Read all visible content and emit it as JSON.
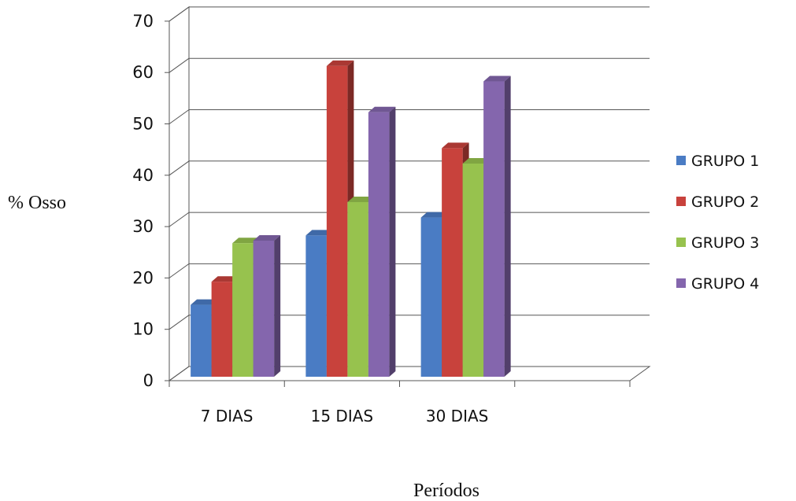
{
  "chart_data": {
    "type": "bar",
    "title": "",
    "ylabel": "% Osso",
    "xlabel": "Períodos",
    "categories": [
      "7 DIAS",
      "15 DIAS",
      "30 DIAS",
      ""
    ],
    "series": [
      {
        "name": "GRUPO 1",
        "color": "#4a7cc4",
        "values": [
          14,
          27.5,
          31,
          null
        ]
      },
      {
        "name": "GRUPO 2",
        "color": "#c8423c",
        "values": [
          18.5,
          60.5,
          44.5,
          null
        ]
      },
      {
        "name": "GRUPO 3",
        "color": "#97c24e",
        "values": [
          26,
          34,
          41.5,
          null
        ]
      },
      {
        "name": "GRUPO 4",
        "color": "#8466ad",
        "values": [
          26.5,
          51.5,
          57.5,
          null
        ]
      }
    ],
    "ylim": [
      0,
      70
    ],
    "yticks": [
      0,
      10,
      20,
      30,
      40,
      50,
      60,
      70
    ],
    "grid": true,
    "style": "3d-clustered",
    "legend_position": "right"
  }
}
